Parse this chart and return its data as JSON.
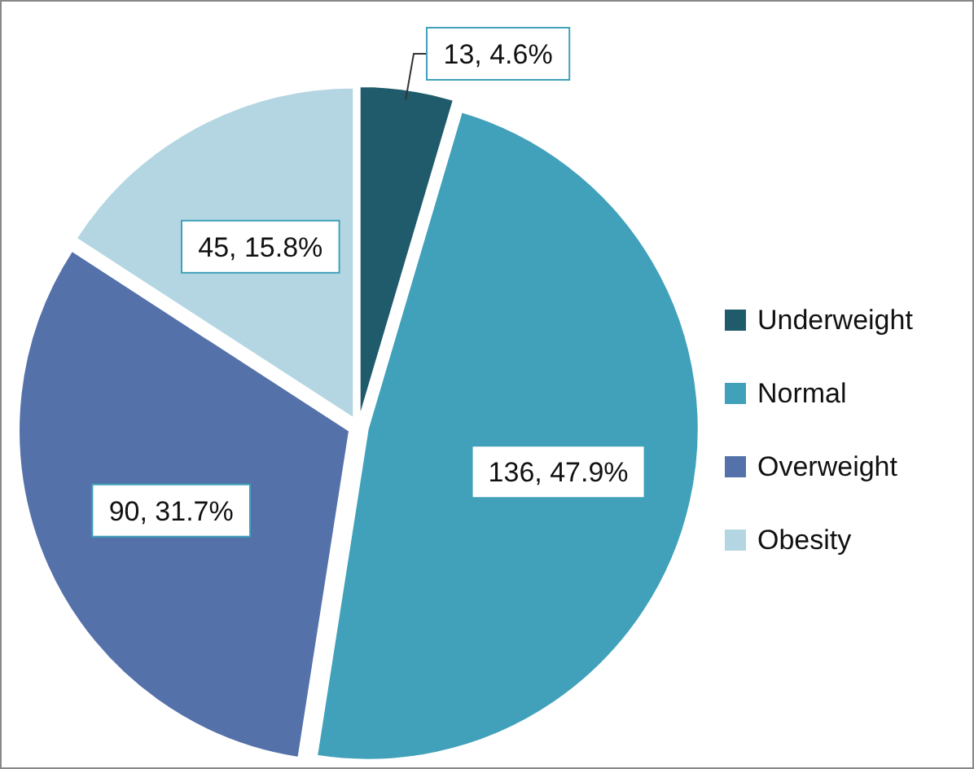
{
  "chart_data": {
    "type": "pie",
    "categories": [
      "Underweight",
      "Normal",
      "Overweight",
      "Obesity"
    ],
    "values": [
      13,
      136,
      90,
      45
    ],
    "colors": [
      "#1f5b6b",
      "#41a1ba",
      "#5571aa",
      "#b4d6e2"
    ],
    "value_labels": [
      "13, 4.6%",
      "136, 47.9%",
      "90, 31.7%",
      "45, 15.8%"
    ],
    "legend": "right"
  }
}
